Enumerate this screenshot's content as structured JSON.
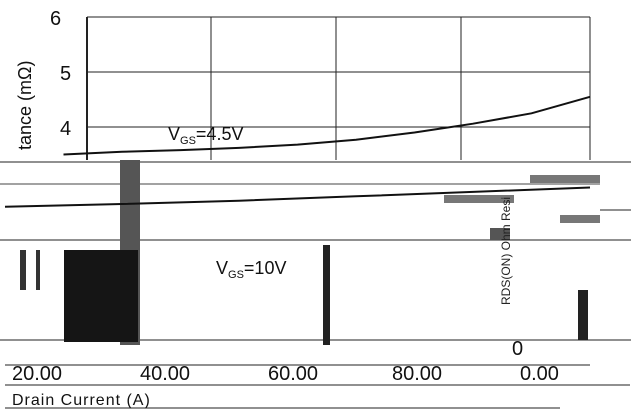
{
  "chart_data": {
    "type": "line",
    "title": "",
    "ylabel_fragment": "tance (mΩ)",
    "xlabel": "Drain Current (A)",
    "vertical_fragment": "RDS(ON) Ohm Resi",
    "y_ticks": [
      "6",
      "5",
      "4"
    ],
    "x_ticks": [
      "20.00",
      "40.00",
      "60.00",
      "80.00",
      "0.00"
    ],
    "corner_label": "0",
    "ylim_visible": [
      3.5,
      6
    ],
    "grid": true,
    "series": [
      {
        "name": "V",
        "subscript": "GS",
        "value_text": "=4.5V",
        "x": [
          10,
          20,
          30,
          40,
          50,
          60,
          70,
          80,
          90,
          100
        ],
        "y": [
          3.5,
          3.55,
          3.58,
          3.62,
          3.68,
          3.77,
          3.9,
          4.06,
          4.25,
          4.55
        ]
      },
      {
        "name": "V",
        "subscript": "GS",
        "value_text": "=10V",
        "x": [
          0,
          20,
          40,
          60,
          80,
          100
        ],
        "y": [
          2.55,
          2.6,
          2.66,
          2.74,
          2.82,
          2.9
        ]
      }
    ]
  }
}
